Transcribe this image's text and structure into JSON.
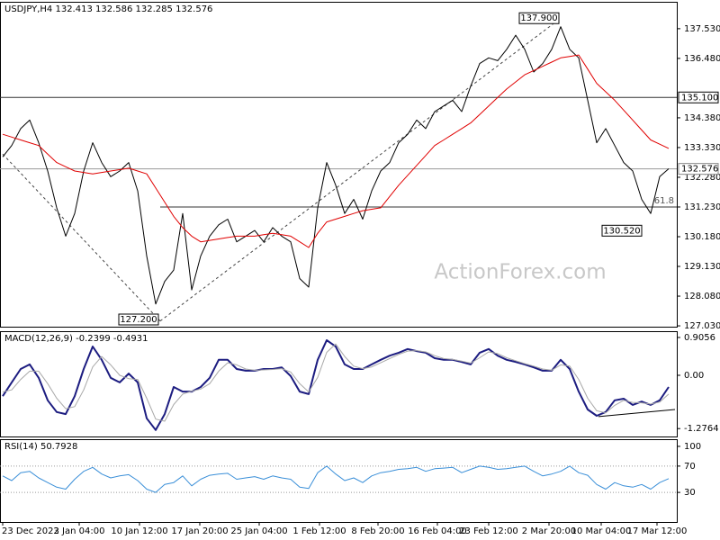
{
  "chart_data": [
    {
      "type": "line",
      "title": "USDJPY,H4  132.413 132.586 132.285 132.576",
      "watermark": "ActionForex.com",
      "xlim": [
        0,
        74
      ],
      "ylim": [
        127.0,
        138.48
      ],
      "yticks": [
        {
          "value": 137.53,
          "label": "137.530"
        },
        {
          "value": 136.48,
          "label": "136.480"
        },
        {
          "value": 134.38,
          "label": "134.380"
        },
        {
          "value": 133.33,
          "label": "133.330"
        },
        {
          "value": 132.28,
          "label": "132.280"
        },
        {
          "value": 131.23,
          "label": "131.230"
        },
        {
          "value": 130.18,
          "label": "130.180"
        },
        {
          "value": 129.13,
          "label": "129.130"
        },
        {
          "value": 128.08,
          "label": "128.080"
        },
        {
          "value": 127.03,
          "label": "127.030"
        }
      ],
      "grid": false,
      "series": [
        {
          "name": "USDJPY",
          "color": "#000000",
          "values": [
            133.0,
            133.4,
            134.0,
            134.3,
            133.5,
            132.5,
            131.2,
            130.2,
            131.0,
            132.5,
            133.5,
            132.8,
            132.3,
            132.5,
            132.8,
            131.8,
            129.5,
            127.8,
            128.6,
            129.0,
            131.0,
            128.3,
            129.5,
            130.2,
            130.6,
            130.8,
            130.0,
            130.2,
            130.4,
            130.0,
            130.5,
            130.2,
            130.0,
            128.7,
            128.4,
            131.2,
            132.8,
            132.0,
            131.0,
            131.5,
            130.8,
            131.8,
            132.5,
            132.8,
            133.5,
            133.8,
            134.3,
            134.0,
            134.6,
            134.8,
            135.0,
            134.6,
            135.5,
            136.3,
            136.5,
            136.4,
            136.8,
            137.3,
            136.8,
            136.0,
            136.3,
            136.8,
            137.6,
            136.8,
            136.5,
            135.0,
            133.5,
            134.0,
            133.4,
            132.8,
            132.5,
            131.5,
            131.0,
            132.3,
            132.58
          ]
        },
        {
          "name": "SMA",
          "color": "#e00000",
          "values": [
            133.8,
            133.7,
            133.6,
            133.5,
            133.4,
            133.1,
            132.8,
            132.65,
            132.5,
            132.45,
            132.4,
            132.45,
            132.5,
            132.55,
            132.6,
            132.5,
            132.4,
            131.9,
            131.4,
            130.9,
            130.5,
            130.2,
            130.0,
            130.05,
            130.1,
            130.15,
            130.2,
            130.2,
            130.2,
            130.25,
            130.3,
            130.25,
            130.2,
            130.0,
            129.8,
            130.3,
            130.7,
            130.8,
            130.9,
            131.0,
            131.1,
            131.15,
            131.2,
            131.6,
            132.0,
            132.35,
            132.7,
            133.05,
            133.4,
            133.6,
            133.8,
            134.0,
            134.2,
            134.5,
            134.8,
            135.1,
            135.4,
            135.65,
            135.9,
            136.05,
            136.2,
            136.35,
            136.5,
            136.55,
            136.6,
            136.1,
            135.6,
            135.3,
            135.0,
            134.65,
            134.3,
            133.95,
            133.6,
            133.45,
            133.3
          ]
        }
      ],
      "hlines": [
        {
          "value": 135.1,
          "label": "135.100"
        },
        {
          "value": 132.576,
          "label": "132.576"
        }
      ],
      "swings": [
        {
          "x": 0,
          "y": 133.1
        },
        {
          "x": 17.5,
          "y": 127.2,
          "label": "127.200"
        },
        {
          "x": 62,
          "y": 137.9,
          "label": "137.900"
        },
        {
          "x": 71.2,
          "y": 130.52,
          "label": "130.520"
        }
      ],
      "fib_level": {
        "price": 131.23,
        "percent": 61.8,
        "x_start": 17.5
      }
    },
    {
      "type": "line",
      "title": "MACD(12,26,9) -0.2399 -0.4931",
      "xlim": [
        0,
        74
      ],
      "ylim": [
        -1.466,
        1.056
      ],
      "yticks": [
        0.9056,
        {
          "value": 0,
          "label": "0.00"
        },
        -1.2764
      ],
      "grid": false,
      "series": [
        {
          "name": "MACD",
          "color": "#1c1c80",
          "values": [
            -0.5,
            -0.17,
            0.15,
            0.26,
            -0.06,
            -0.6,
            -0.88,
            -0.93,
            -0.5,
            0.15,
            0.69,
            0.37,
            -0.06,
            -0.17,
            0.04,
            -0.17,
            -1.03,
            -1.31,
            -0.93,
            -0.28,
            -0.39,
            -0.39,
            -0.28,
            -0.06,
            0.37,
            0.37,
            0.15,
            0.11,
            0.11,
            0.15,
            0.15,
            0.19,
            -0.02,
            -0.39,
            -0.45,
            0.37,
            0.84,
            0.69,
            0.26,
            0.15,
            0.15,
            0.26,
            0.37,
            0.47,
            0.54,
            0.63,
            0.58,
            0.54,
            0.41,
            0.37,
            0.37,
            0.32,
            0.26,
            0.54,
            0.63,
            0.47,
            0.37,
            0.32,
            0.26,
            0.19,
            0.11,
            0.11,
            0.37,
            0.15,
            -0.39,
            -0.82,
            -0.97,
            -0.88,
            -0.6,
            -0.56,
            -0.71,
            -0.63,
            -0.71,
            -0.6,
            -0.28
          ]
        },
        {
          "name": "Signal",
          "color": "#a8a8a8",
          "values": [
            -0.4,
            -0.35,
            -0.1,
            0.1,
            0.1,
            -0.2,
            -0.55,
            -0.8,
            -0.75,
            -0.35,
            0.2,
            0.45,
            0.25,
            0.0,
            -0.08,
            -0.1,
            -0.55,
            -1.05,
            -1.1,
            -0.7,
            -0.45,
            -0.38,
            -0.33,
            -0.2,
            0.1,
            0.3,
            0.25,
            0.15,
            0.12,
            0.13,
            0.14,
            0.16,
            0.08,
            -0.2,
            -0.4,
            -0.05,
            0.55,
            0.75,
            0.45,
            0.22,
            0.16,
            0.2,
            0.3,
            0.4,
            0.5,
            0.58,
            0.59,
            0.56,
            0.47,
            0.4,
            0.38,
            0.34,
            0.29,
            0.42,
            0.56,
            0.52,
            0.42,
            0.35,
            0.28,
            0.22,
            0.15,
            0.12,
            0.25,
            0.22,
            -0.1,
            -0.55,
            -0.85,
            -0.9,
            -0.72,
            -0.6,
            -0.65,
            -0.66,
            -0.69,
            -0.64,
            -0.45
          ]
        }
      ],
      "divergence": [
        {
          "x": 66.2,
          "y": -0.99
        },
        {
          "x": 74.7,
          "y": -0.82
        }
      ]
    },
    {
      "type": "line",
      "title": "RSI(14) 50.7928",
      "xlim": [
        0,
        74
      ],
      "ylim": [
        -15,
        110.9
      ],
      "yticks": [
        100,
        70,
        30
      ],
      "dotted_levels": [
        70,
        30
      ],
      "grid": false,
      "series": [
        {
          "name": "RSI",
          "color": "#3a8fd8",
          "values": [
            55,
            48,
            60,
            62,
            52,
            45,
            38,
            35,
            50,
            62,
            68,
            58,
            52,
            55,
            57,
            48,
            35,
            30,
            42,
            45,
            55,
            40,
            50,
            56,
            58,
            59,
            50,
            52,
            54,
            50,
            55,
            52,
            50,
            38,
            36,
            60,
            70,
            58,
            48,
            52,
            45,
            55,
            60,
            62,
            65,
            66,
            68,
            62,
            66,
            67,
            68,
            60,
            65,
            70,
            68,
            65,
            66,
            68,
            70,
            62,
            55,
            58,
            62,
            70,
            60,
            56,
            42,
            35,
            45,
            40,
            38,
            42,
            35,
            45,
            51
          ]
        }
      ],
      "xticks": [
        {
          "value": 0,
          "label": "23 Dec 2022"
        },
        {
          "value": 8.5,
          "label": "3 Jan 04:00"
        },
        {
          "value": 15.2,
          "label": "10 Jan 12:00"
        },
        {
          "value": 21.9,
          "label": "17 Jan 20:00"
        },
        {
          "value": 28.5,
          "label": "25 Jan 04:00"
        },
        {
          "value": 35.2,
          "label": "1 Feb 12:00"
        },
        {
          "value": 41.7,
          "label": "8 Feb 20:00"
        },
        {
          "value": 48.3,
          "label": "16 Feb 04:00"
        },
        {
          "value": 54.0,
          "label": "23 Feb 12:00"
        },
        {
          "value": 60.7,
          "label": "2 Mar 20:00"
        },
        {
          "value": 66.5,
          "label": "10 Mar 04:00"
        },
        {
          "value": 72.7,
          "label": "17 Mar 12:00"
        }
      ]
    }
  ]
}
